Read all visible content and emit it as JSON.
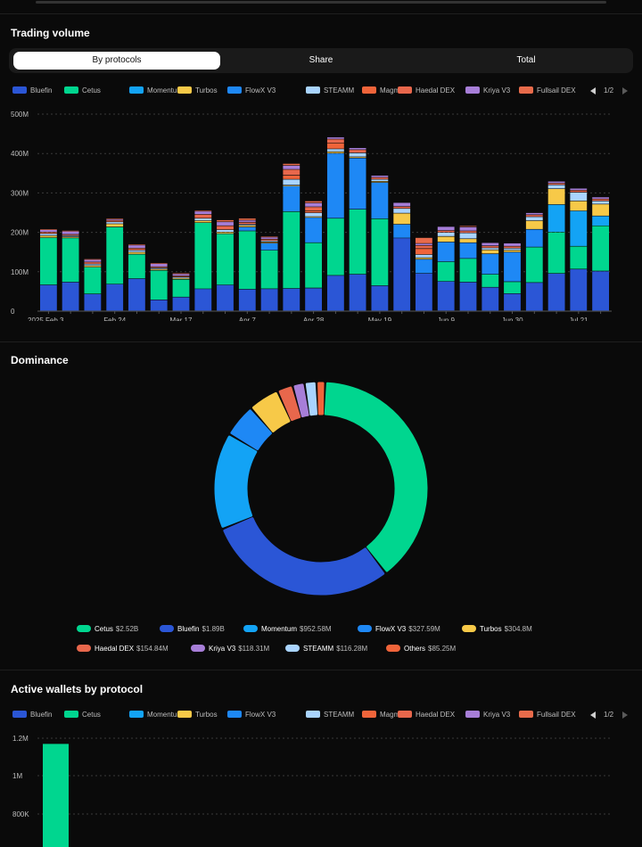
{
  "sections": {
    "trading_volume_title": "Trading volume",
    "dominance_title": "Dominance",
    "active_wallets_title": "Active wallets by protocol"
  },
  "tabs": [
    {
      "label": "By protocols",
      "active": true
    },
    {
      "label": "Share",
      "active": false
    },
    {
      "label": "Total",
      "active": false
    }
  ],
  "legend": {
    "items": [
      {
        "name": "Bluefin",
        "color": "#2b56d6"
      },
      {
        "name": "Cetus",
        "color": "#00d68f"
      },
      {
        "name": "Momentum",
        "color": "#13a3f5"
      },
      {
        "name": "Turbos",
        "color": "#f7c948"
      },
      {
        "name": "FlowX V3",
        "color": "#1e88f5"
      },
      {
        "name": "STEAMM",
        "color": "#a9d4ff"
      },
      {
        "name": "Magma",
        "color": "#f0643a"
      },
      {
        "name": "Haedal DEX",
        "color": "#e8674c"
      },
      {
        "name": "Kriya V3",
        "color": "#a77ed8"
      },
      {
        "name": "Fullsail DEX",
        "color": "#e86b4b"
      }
    ],
    "page": "1/2",
    "prev_icon": "chevron-left-icon",
    "next_icon": "chevron-right-icon"
  },
  "chart_data": [
    {
      "type": "bar",
      "stacked": true,
      "title": "Trading volume",
      "y_ticks": [
        "0",
        "100M",
        "200M",
        "300M",
        "400M",
        "500M"
      ],
      "ylim": [
        0,
        500
      ],
      "y_unit": "M",
      "x_tick_labels": [
        {
          "label": "2025 Feb 3",
          "index": 0
        },
        {
          "label": "Feb 24",
          "index": 3
        },
        {
          "label": "Mar 17",
          "index": 6
        },
        {
          "label": "Apr 7",
          "index": 9
        },
        {
          "label": "Apr 28",
          "index": 12
        },
        {
          "label": "May 19",
          "index": 15
        },
        {
          "label": "Jun 9",
          "index": 18
        },
        {
          "label": "Jun 30",
          "index": 21
        },
        {
          "label": "Jul 21",
          "index": 24
        }
      ],
      "grid": true,
      "series": [
        {
          "name": "Bluefin",
          "values": [
            66,
            73,
            43,
            68,
            82,
            28,
            35,
            56,
            66,
            55,
            56,
            57,
            58,
            90,
            93,
            64,
            185,
            95,
            75,
            73,
            60,
            44,
            72,
            95,
            106,
            101
          ]
        },
        {
          "name": "Cetus",
          "values": [
            120,
            112,
            68,
            145,
            62,
            75,
            45,
            168,
            130,
            148,
            98,
            195,
            115,
            145,
            165,
            170,
            0,
            0,
            50,
            60,
            33,
            30,
            90,
            105,
            58,
            115
          ]
        },
        {
          "name": "Momentum",
          "values": [
            0,
            0,
            0,
            0,
            0,
            0,
            0,
            0,
            0,
            0,
            0,
            0,
            0,
            0,
            0,
            0,
            0,
            0,
            0,
            0,
            0,
            0,
            0,
            70,
            90,
            25
          ]
        },
        {
          "name": "FlowX V3",
          "values": [
            0,
            0,
            0,
            0,
            0,
            0,
            0,
            0,
            0,
            10,
            18,
            65,
            64,
            165,
            130,
            92,
            35,
            36,
            50,
            40,
            52,
            75,
            45,
            0,
            0,
            0
          ]
        },
        {
          "name": "Turbos",
          "values": [
            5,
            3,
            4,
            8,
            5,
            3,
            3,
            5,
            4,
            4,
            3,
            2,
            2,
            4,
            3,
            3,
            28,
            4,
            14,
            10,
            10,
            5,
            22,
            40,
            25,
            30
          ]
        },
        {
          "name": "STEAMM",
          "values": [
            5,
            3,
            4,
            5,
            5,
            3,
            3,
            6,
            6,
            3,
            3,
            15,
            10,
            7,
            10,
            5,
            12,
            8,
            10,
            15,
            5,
            5,
            10,
            10,
            22,
            8
          ]
        },
        {
          "name": "Magma",
          "values": [
            0,
            0,
            0,
            0,
            0,
            0,
            0,
            0,
            0,
            0,
            0,
            10,
            5,
            15,
            0,
            0,
            0,
            15,
            0,
            0,
            0,
            0,
            0,
            0,
            0,
            0
          ]
        },
        {
          "name": "Haedal DEX",
          "values": [
            4,
            3,
            5,
            4,
            5,
            3,
            3,
            10,
            10,
            5,
            4,
            15,
            10,
            10,
            8,
            5,
            5,
            8,
            5,
            5,
            5,
            5,
            5,
            4,
            5,
            5
          ]
        },
        {
          "name": "Kriya V3",
          "values": [
            6,
            8,
            6,
            3,
            8,
            8,
            5,
            8,
            10,
            5,
            5,
            10,
            10,
            5,
            5,
            5,
            10,
            5,
            10,
            10,
            8,
            8,
            5,
            5,
            5,
            5
          ]
        },
        {
          "name": "Fullsail DEX",
          "values": [
            2,
            2,
            2,
            2,
            2,
            2,
            2,
            2,
            5,
            5,
            2,
            5,
            5,
            0,
            0,
            0,
            0,
            15,
            0,
            3,
            0,
            0,
            0,
            0,
            0,
            0
          ]
        }
      ]
    },
    {
      "type": "pie",
      "donut": true,
      "title": "Dominance",
      "slices": [
        {
          "name": "Cetus",
          "label": "$2.52B",
          "value": 2520
        },
        {
          "name": "Bluefin",
          "label": "$1.89B",
          "value": 1890
        },
        {
          "name": "Momentum",
          "label": "$952.58M",
          "value": 952.58
        },
        {
          "name": "FlowX V3",
          "label": "$327.59M",
          "value": 327.59
        },
        {
          "name": "Turbos",
          "label": "$304.8M",
          "value": 304.8
        },
        {
          "name": "Haedal DEX",
          "label": "$154.84M",
          "value": 154.84
        },
        {
          "name": "Kriya V3",
          "label": "$118.31M",
          "value": 118.31
        },
        {
          "name": "STEAMM",
          "label": "$116.28M",
          "value": 116.28
        },
        {
          "name": "Others",
          "label": "$85.25M",
          "value": 85.25
        }
      ],
      "colors": {
        "Cetus": "#00d68f",
        "Bluefin": "#2b56d6",
        "Momentum": "#13a3f5",
        "FlowX V3": "#1e88f5",
        "Turbos": "#f7c948",
        "Haedal DEX": "#e8674c",
        "Kriya V3": "#a77ed8",
        "STEAMM": "#a9d4ff",
        "Others": "#f0643a"
      }
    },
    {
      "type": "bar",
      "title": "Active wallets by protocol",
      "y_ticks": [
        "800K",
        "1M",
        "1.2M"
      ],
      "series": [
        {
          "name": "Cetus",
          "values": [
            1170000
          ]
        }
      ]
    }
  ]
}
